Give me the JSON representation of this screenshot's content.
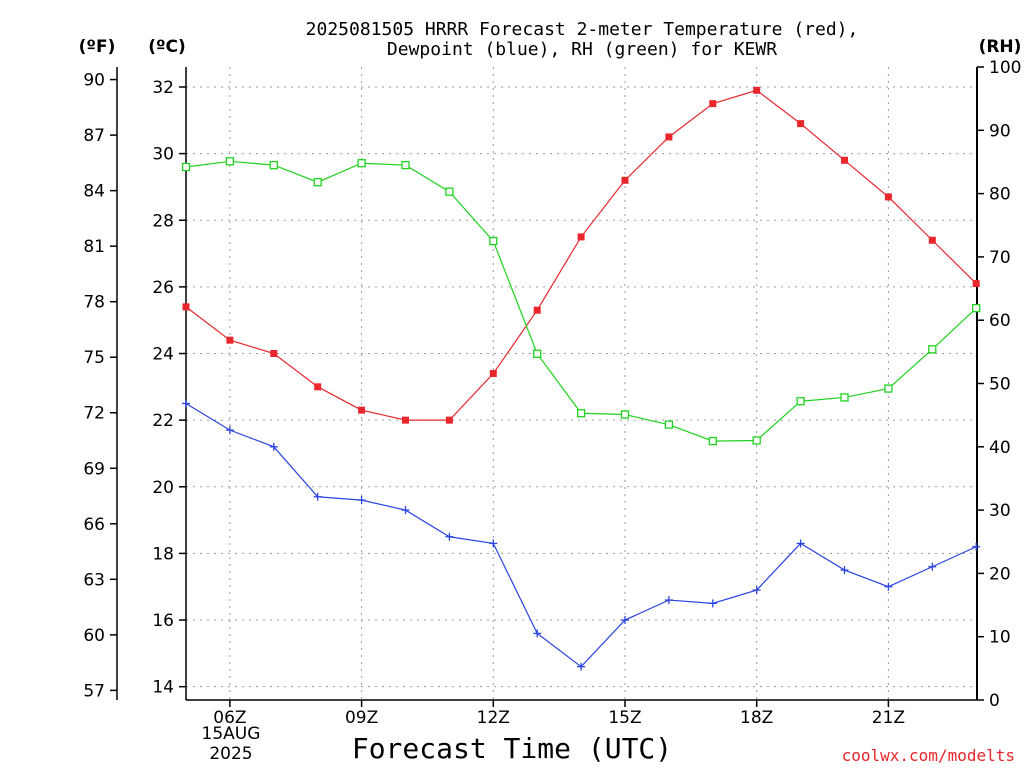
{
  "title_line1": "2025081505 HRRR Forecast 2-meter Temperature (red),",
  "title_line2": "Dewpoint (blue), RH (green) for KEWR",
  "unit_f": "(ºF)",
  "unit_c": "(ºC)",
  "unit_rh": "(RH)",
  "xlabel": "Forecast Time (UTC)",
  "credit": "coolwx.com/modelts",
  "date_label": [
    "15AUG",
    "2025"
  ],
  "colors": {
    "temperature": "#e8262c",
    "dewpoint": "#2b44e0",
    "rh": "#1fd21f",
    "grid": "#9a9a9a"
  },
  "chart_data": {
    "type": "line",
    "title": "2025081505 HRRR Forecast 2-meter Temperature (red), Dewpoint (blue), RH (green) for KEWR",
    "xlabel": "Forecast Time (UTC)",
    "x": [
      "05Z",
      "06Z",
      "07Z",
      "08Z",
      "09Z",
      "10Z",
      "11Z",
      "12Z",
      "13Z",
      "14Z",
      "15Z",
      "16Z",
      "17Z",
      "18Z",
      "19Z",
      "20Z",
      "21Z",
      "22Z",
      "23Z"
    ],
    "x_ticks": [
      "06Z",
      "09Z",
      "12Z",
      "15Z",
      "18Z",
      "21Z"
    ],
    "x_tick_index": [
      1,
      4,
      7,
      10,
      13,
      16
    ],
    "left_axis_c": {
      "ticks": [
        14,
        16,
        18,
        20,
        22,
        24,
        26,
        28,
        30,
        32
      ],
      "range": [
        13.6,
        32.6
      ]
    },
    "left_axis_f": {
      "ticks": [
        57,
        60,
        63,
        66,
        69,
        72,
        75,
        78,
        81,
        84,
        87,
        90
      ]
    },
    "right_axis_rh": {
      "ticks": [
        0,
        10,
        20,
        30,
        40,
        50,
        60,
        70,
        80,
        90,
        100
      ],
      "range": [
        0,
        100
      ]
    },
    "grid": true,
    "series": [
      {
        "name": "Temperature",
        "axis": "c",
        "marker": "filled-square",
        "values": [
          25.4,
          24.4,
          24.0,
          23.0,
          22.3,
          22.0,
          22.0,
          23.4,
          25.3,
          27.5,
          29.2,
          30.5,
          31.5,
          31.9,
          30.9,
          29.8,
          28.7,
          27.4,
          26.1
        ]
      },
      {
        "name": "Dewpoint",
        "axis": "c",
        "marker": "plus",
        "values": [
          22.5,
          21.7,
          21.2,
          19.7,
          19.6,
          19.3,
          18.5,
          18.3,
          15.6,
          14.6,
          16.0,
          16.6,
          16.5,
          16.9,
          18.3,
          17.5,
          17.0,
          17.6,
          18.2
        ]
      },
      {
        "name": "RH",
        "axis": "rh",
        "marker": "open-square",
        "values": [
          84.2,
          85.1,
          84.5,
          81.8,
          84.8,
          84.5,
          80.3,
          72.5,
          54.7,
          45.3,
          45.1,
          43.5,
          40.9,
          41.0,
          47.2,
          47.8,
          49.2,
          55.4,
          61.9
        ]
      }
    ]
  }
}
